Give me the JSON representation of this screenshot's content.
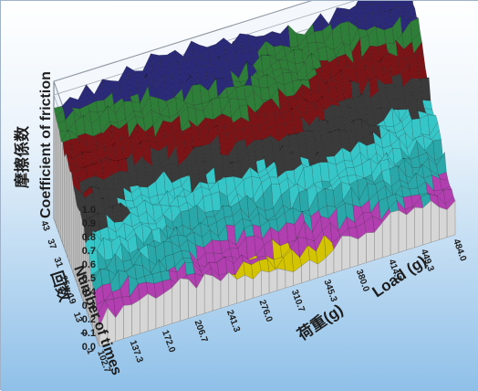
{
  "chart_data": {
    "type": "surface3d",
    "title": "",
    "zlabel": {
      "jp": "摩擦係数",
      "en": "Coefficient of friction"
    },
    "ylabel": {
      "jp": "回数",
      "en": "Number of times"
    },
    "xlabel": {
      "jp": "荷重(g)",
      "en": "Load (g)"
    },
    "z_ticks": [
      "0.0",
      "0.1",
      "0.2",
      "0.3",
      "0.4",
      "0.5",
      "0.6",
      "0.7",
      "0.8",
      "0.9",
      "1.0"
    ],
    "y_ticks": [
      "1",
      "7",
      "13",
      "19",
      "25",
      "31",
      "37",
      "43"
    ],
    "x_ticks": [
      "102.7",
      "137.3",
      "172.0",
      "206.7",
      "241.3",
      "276.0",
      "310.7",
      "345.3",
      "380.0",
      "414.7",
      "449.3",
      "484.0"
    ],
    "zlim": [
      0,
      1.0
    ],
    "xlim": [
      102.7,
      484.0
    ],
    "ylim": [
      1,
      43
    ],
    "color_bands": [
      {
        "range": [
          0.0,
          0.1
        ],
        "color": "#c8c8c8"
      },
      {
        "range": [
          0.1,
          0.2
        ],
        "color": "#d4c400"
      },
      {
        "range": [
          0.2,
          0.3
        ],
        "color": "#b23fb0"
      },
      {
        "range": [
          0.3,
          0.4
        ],
        "color": "#2aa7a8"
      },
      {
        "range": [
          0.4,
          0.5
        ],
        "color": "#37c6c8"
      },
      {
        "range": [
          0.5,
          0.6
        ],
        "color": "#3a3a3a"
      },
      {
        "range": [
          0.6,
          0.7
        ],
        "color": "#7a1417"
      },
      {
        "range": [
          0.7,
          0.8
        ],
        "color": "#2e7d38"
      },
      {
        "range": [
          0.8,
          1.0
        ],
        "color": "#2b2a78"
      }
    ],
    "surface_trend": "friction coefficient rises with number of times (from ~0.2 at 1 to ~0.9 at 43)",
    "grid": true
  }
}
